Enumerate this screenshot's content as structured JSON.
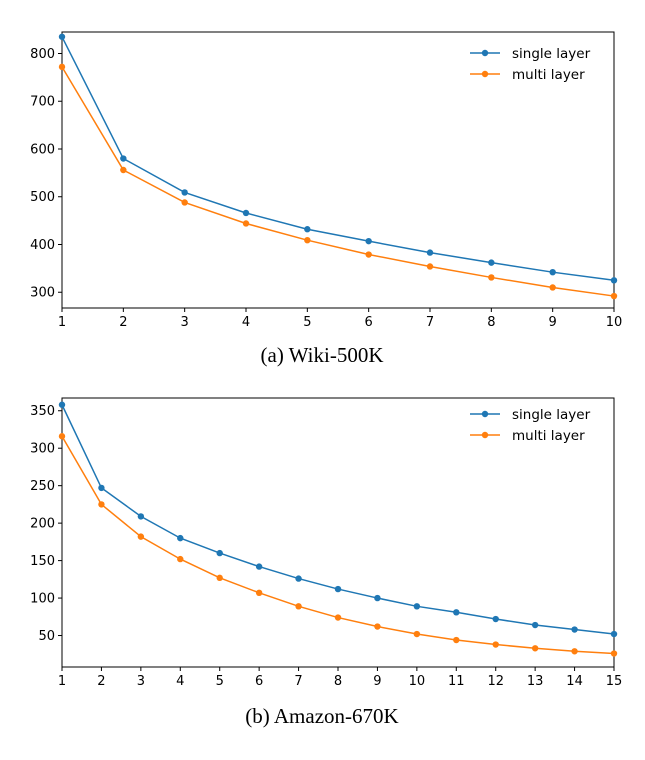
{
  "chart_data": [
    {
      "type": "line",
      "caption": "(a) Wiki-500K",
      "x": [
        1,
        2,
        3,
        4,
        5,
        6,
        7,
        8,
        9,
        10
      ],
      "xlim": [
        1,
        10
      ],
      "ylim": [
        267,
        845
      ],
      "xticks": [
        1,
        2,
        3,
        4,
        5,
        6,
        7,
        8,
        9,
        10
      ],
      "yticks": [
        300,
        400,
        500,
        600,
        700,
        800
      ],
      "legend_position": "top-right",
      "grid": false,
      "series": [
        {
          "name": "single layer",
          "color": "#1f77b4",
          "values": [
            835,
            580,
            509,
            466,
            432,
            407,
            383,
            362,
            342,
            325
          ]
        },
        {
          "name": "multi layer",
          "color": "#ff7f0e",
          "values": [
            772,
            556,
            488,
            444,
            409,
            379,
            354,
            331,
            310,
            292
          ]
        }
      ]
    },
    {
      "type": "line",
      "caption": "(b) Amazon-670K",
      "x": [
        1,
        2,
        3,
        4,
        5,
        6,
        7,
        8,
        9,
        10,
        11,
        12,
        13,
        14,
        15
      ],
      "xlim": [
        1,
        15
      ],
      "ylim": [
        8,
        367
      ],
      "xticks": [
        1,
        2,
        3,
        4,
        5,
        6,
        7,
        8,
        9,
        10,
        11,
        12,
        13,
        14,
        15
      ],
      "yticks": [
        50,
        100,
        150,
        200,
        250,
        300,
        350
      ],
      "legend_position": "top-right",
      "grid": false,
      "series": [
        {
          "name": "single layer",
          "color": "#1f77b4",
          "values": [
            358,
            247,
            209,
            180,
            160,
            142,
            126,
            112,
            100,
            89,
            81,
            72,
            64,
            58,
            52
          ]
        },
        {
          "name": "multi layer",
          "color": "#ff7f0e",
          "values": [
            316,
            225,
            182,
            152,
            127,
            107,
            89,
            74,
            62,
            52,
            44,
            38,
            33,
            29,
            26
          ]
        }
      ]
    }
  ]
}
